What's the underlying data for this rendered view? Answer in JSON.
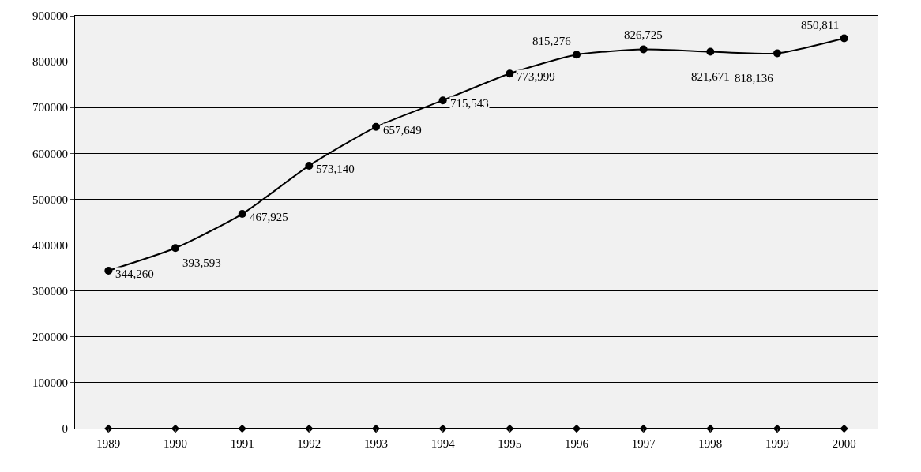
{
  "chart_data": {
    "type": "line",
    "categories": [
      "1989",
      "1990",
      "1991",
      "1992",
      "1993",
      "1994",
      "1995",
      "1996",
      "1997",
      "1998",
      "1999",
      "2000"
    ],
    "series": [
      {
        "color": "#000000",
        "marker": "circle",
        "values": [
          344260,
          393593,
          467925,
          573140,
          657649,
          715543,
          773999,
          815276,
          826725,
          821671,
          818136,
          850811
        ],
        "value_labels": [
          "344,260",
          "393,593",
          "467,925",
          "573,140",
          "657,649",
          "715,543",
          "773,999",
          "815,276",
          "826,725",
          "821,671",
          "818,136",
          "850,811"
        ]
      },
      {
        "color": "#000000",
        "marker": "diamond",
        "values": [
          0,
          0,
          0,
          0,
          0,
          0,
          0,
          0,
          0,
          0,
          0,
          0
        ]
      }
    ],
    "ylim": [
      0,
      900000
    ],
    "yticks": [
      0,
      100000,
      200000,
      300000,
      400000,
      500000,
      600000,
      700000,
      800000,
      900000
    ],
    "grid": "y"
  }
}
